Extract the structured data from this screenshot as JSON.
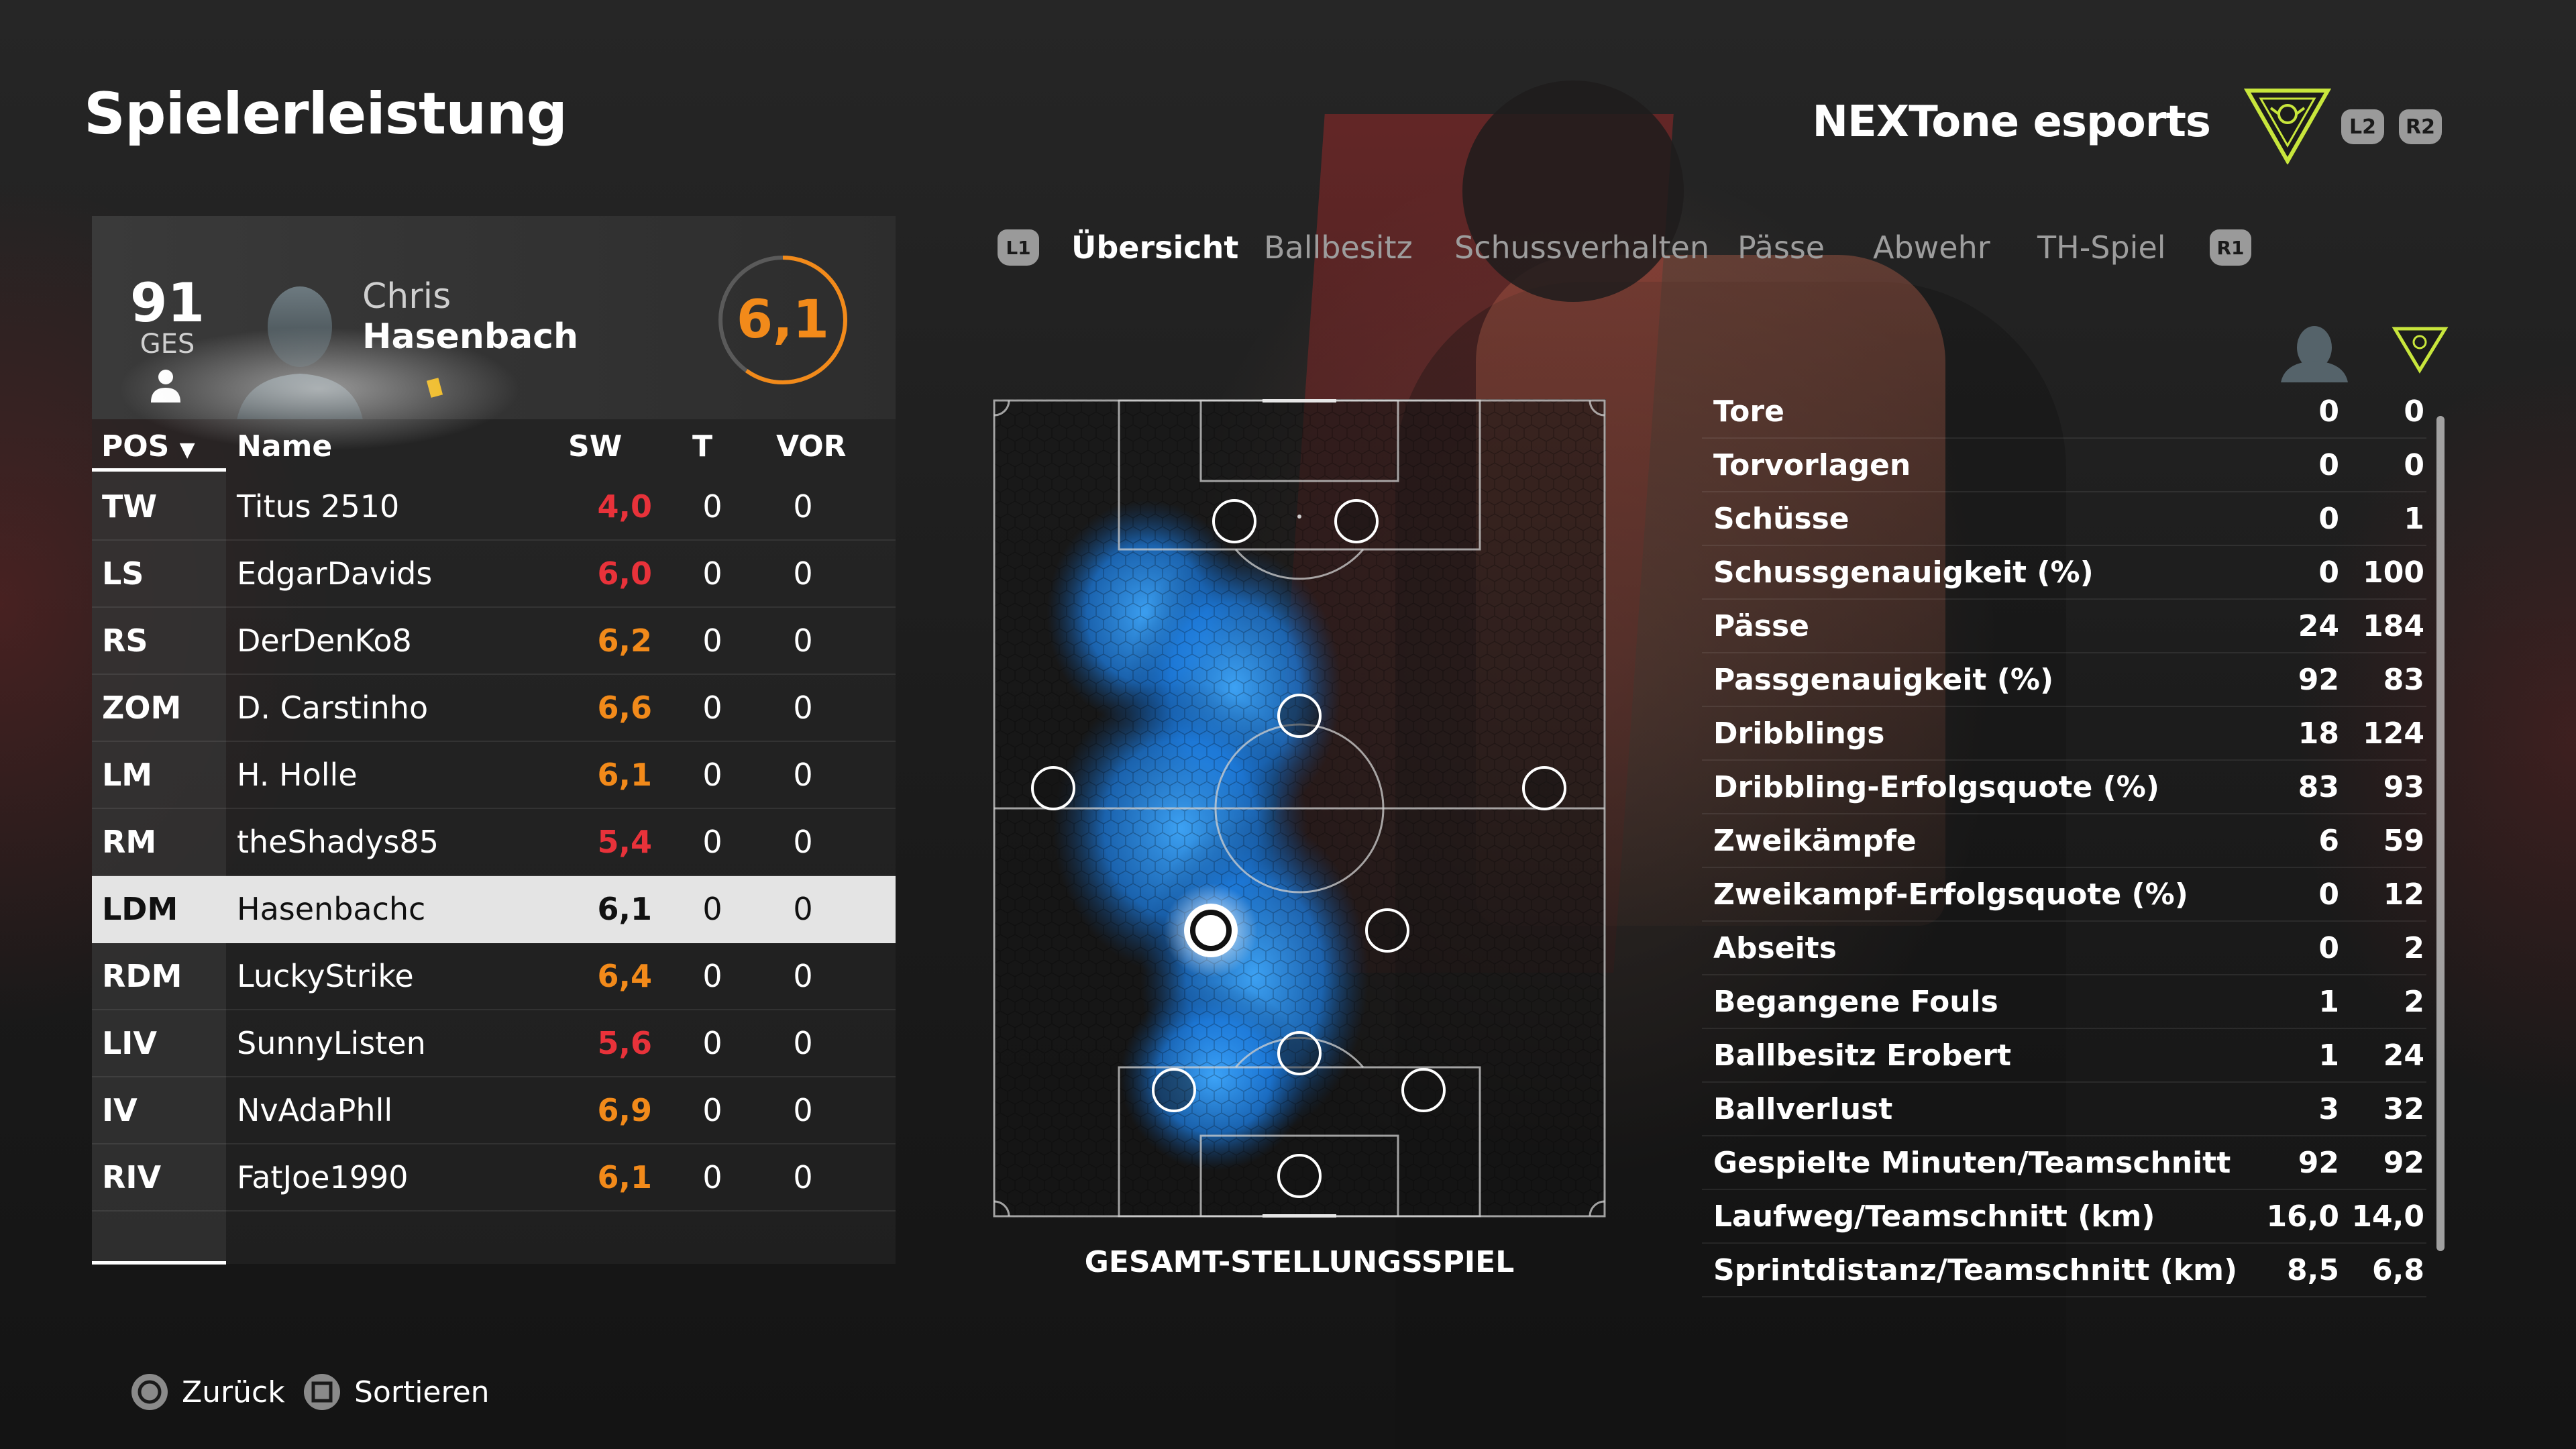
{
  "page": {
    "title": "Spielerleistung"
  },
  "header": {
    "team_name": "NEXTone esports",
    "buttons": [
      {
        "label": "L2"
      },
      {
        "label": "R2"
      }
    ],
    "logo_icon": "team-crest-icon"
  },
  "player_card": {
    "overall": "91",
    "overall_label": "GES",
    "first_name": "Chris",
    "last_name": "Hasenbach",
    "rating": "6,1",
    "rating_color": "#f28a1a"
  },
  "table": {
    "headers": {
      "pos": "POS",
      "name": "Name",
      "sw": "SW",
      "t": "T",
      "vor": "VOR"
    },
    "rows": [
      {
        "pos": "TW",
        "name": "Titus 2510",
        "sw": "4,0",
        "t": "0",
        "vor": "0",
        "color": "#e8323a"
      },
      {
        "pos": "LS",
        "name": "EdgarDavids",
        "sw": "6,0",
        "t": "0",
        "vor": "0",
        "color": "#e8323a"
      },
      {
        "pos": "RS",
        "name": "DerDenKo8",
        "sw": "6,2",
        "t": "0",
        "vor": "0",
        "color": "#f28a1a"
      },
      {
        "pos": "ZOM",
        "name": "D. Carstinho",
        "sw": "6,6",
        "t": "0",
        "vor": "0",
        "color": "#f28a1a"
      },
      {
        "pos": "LM",
        "name": "H. Holle",
        "sw": "6,1",
        "t": "0",
        "vor": "0",
        "color": "#f28a1a"
      },
      {
        "pos": "RM",
        "name": "theShadys85",
        "sw": "5,4",
        "t": "0",
        "vor": "0",
        "color": "#e8323a"
      },
      {
        "pos": "LDM",
        "name": "Hasenbachc",
        "sw": "6,1",
        "t": "0",
        "vor": "0",
        "color": "#111111",
        "selected": true
      },
      {
        "pos": "RDM",
        "name": "LuckyStrike",
        "sw": "6,4",
        "t": "0",
        "vor": "0",
        "color": "#f28a1a"
      },
      {
        "pos": "LIV",
        "name": "SunnyListen",
        "sw": "5,6",
        "t": "0",
        "vor": "0",
        "color": "#e8323a"
      },
      {
        "pos": "IV",
        "name": "NvAdaPhll",
        "sw": "6,9",
        "t": "0",
        "vor": "0",
        "color": "#f28a1a"
      },
      {
        "pos": "RIV",
        "name": "FatJoe1990",
        "sw": "6,1",
        "t": "0",
        "vor": "0",
        "color": "#f28a1a"
      }
    ]
  },
  "tabs": {
    "left_button": "L1",
    "right_button": "R1",
    "items": [
      {
        "label": "Übersicht",
        "active": true
      },
      {
        "label": "Ballbesitz"
      },
      {
        "label": "Schussverhalten"
      },
      {
        "label": "Pässe"
      },
      {
        "label": "Abwehr"
      },
      {
        "label": "TH-Spiel"
      }
    ]
  },
  "pitch": {
    "caption": "GESAMT-STELLUNGSSPIEL",
    "heatmap_color": "#1e90ff"
  },
  "stats": [
    {
      "label": "Tore",
      "player": "0",
      "team": "0"
    },
    {
      "label": "Torvorlagen",
      "player": "0",
      "team": "0"
    },
    {
      "label": "Schüsse",
      "player": "0",
      "team": "1"
    },
    {
      "label": "Schussgenauigkeit (%)",
      "player": "0",
      "team": "100"
    },
    {
      "label": "Pässe",
      "player": "24",
      "team": "184"
    },
    {
      "label": "Passgenauigkeit (%)",
      "player": "92",
      "team": "83"
    },
    {
      "label": "Dribblings",
      "player": "18",
      "team": "124"
    },
    {
      "label": "Dribbling-Erfolgsquote (%)",
      "player": "83",
      "team": "93"
    },
    {
      "label": "Zweikämpfe",
      "player": "6",
      "team": "59"
    },
    {
      "label": "Zweikampf-Erfolgsquote (%)",
      "player": "0",
      "team": "12"
    },
    {
      "label": "Abseits",
      "player": "0",
      "team": "2"
    },
    {
      "label": "Begangene Fouls",
      "player": "1",
      "team": "2"
    },
    {
      "label": "Ballbesitz Erobert",
      "player": "1",
      "team": "24"
    },
    {
      "label": "Ballverlust",
      "player": "3",
      "team": "32"
    },
    {
      "label": "Gespielte Minuten/Teamschnitt",
      "player": "92",
      "team": "92"
    },
    {
      "label": "Laufweg/Teamschnitt (km)",
      "player": "16,0",
      "team": "14,0"
    },
    {
      "label": "Sprintdistanz/Teamschnitt (km)",
      "player": "8,5",
      "team": "6,8"
    }
  ],
  "footer": {
    "back_label": "Zurück",
    "sort_label": "Sortieren"
  }
}
